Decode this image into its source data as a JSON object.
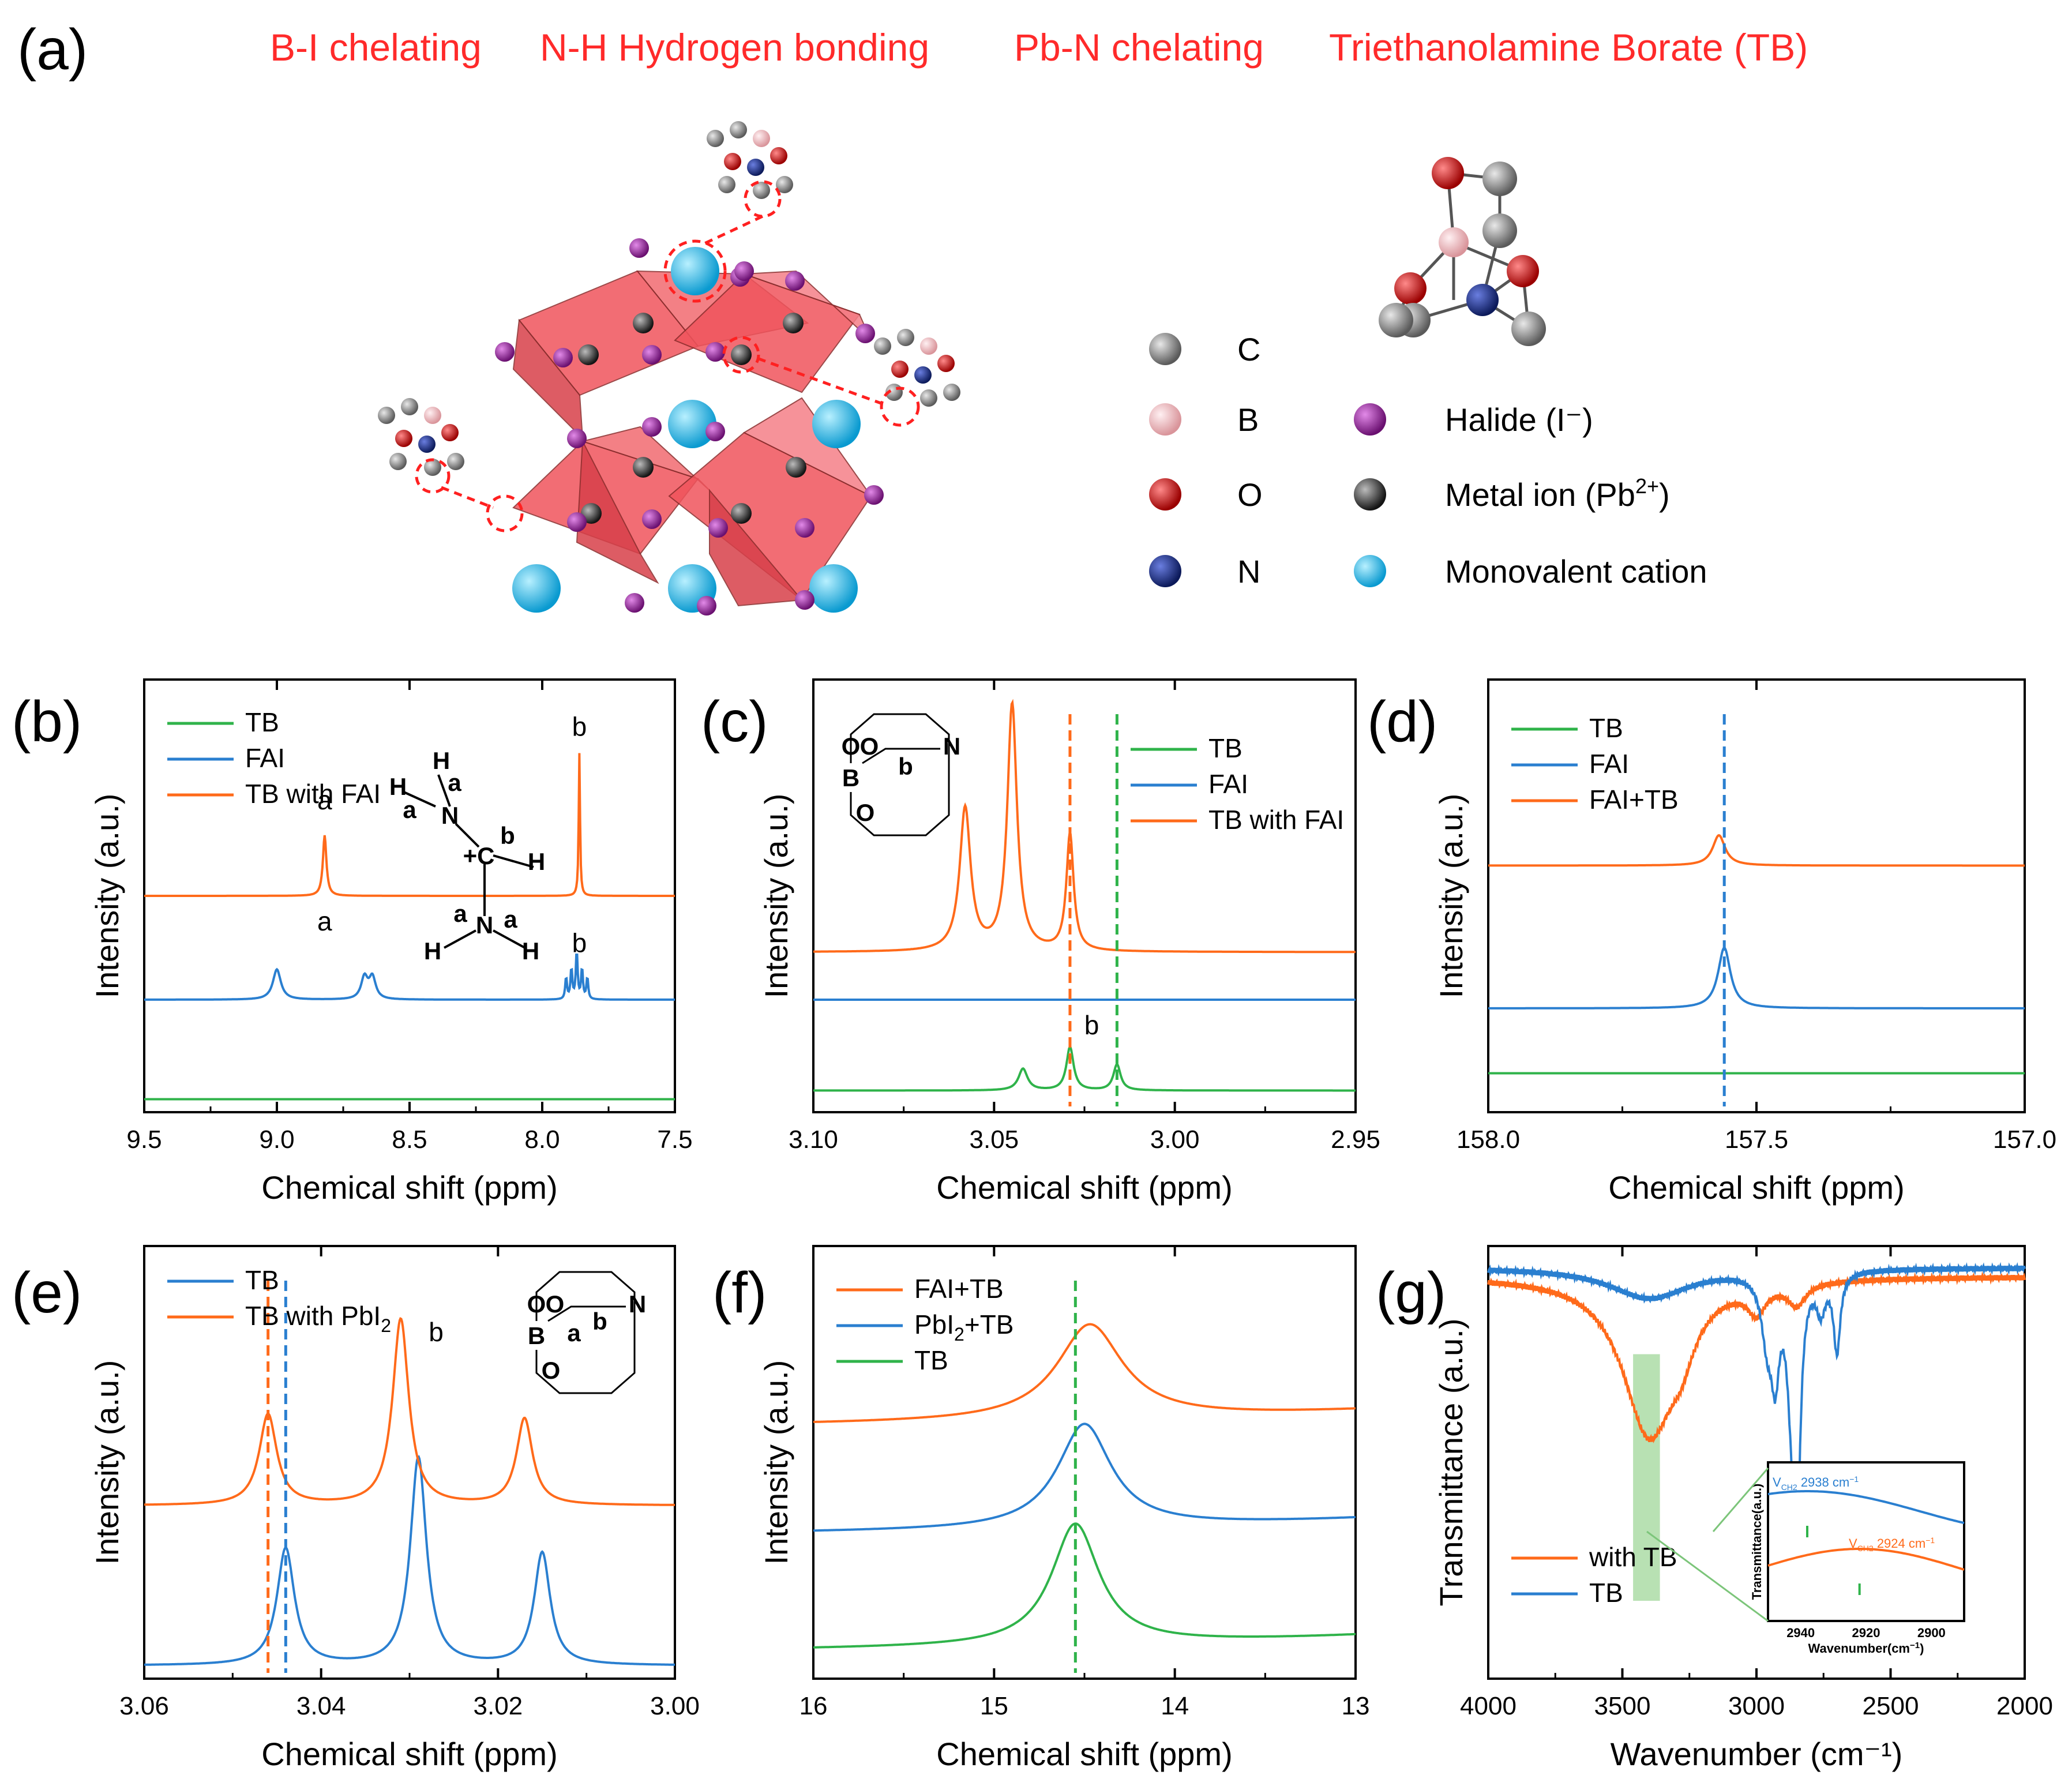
{
  "panel_a": {
    "label": "(a)",
    "headings": [
      "B-I chelating",
      "N-H Hydrogen bonding",
      "Pb-N chelating",
      "Triethanolamine Borate (TB)"
    ],
    "legend": [
      {
        "label": "C",
        "color": "#8c8c8c"
      },
      {
        "label": "B",
        "color": "#f4b8bc"
      },
      {
        "label": "O",
        "color": "#e01010"
      },
      {
        "label": "N",
        "color": "#1c2f8c"
      },
      {
        "label": "Halide (I⁻)",
        "color": "#9a2aa0"
      },
      {
        "label": "Metal ion (Pb",
        "sup": "2+",
        "tail": ")",
        "color": "#3a3a3a"
      },
      {
        "label": "Monovalent cation",
        "color": "#1ab8e8"
      }
    ],
    "colors": {
      "octahedron": "#f0545c",
      "halide": "#9a2aa0",
      "metal": "#3a3a3a",
      "cation": "#1ab8e8",
      "arrow": "#ff2020"
    }
  },
  "chart_data": [
    {
      "id": "b",
      "label": "(b)",
      "type": "line",
      "xlabel": "Chemical shift (ppm)",
      "ylabel": "Intensity (a.u.)",
      "xlim": [
        9.5,
        7.5
      ],
      "xticks": [
        "9.5",
        "9.0",
        "8.5",
        "8.0",
        "7.5"
      ],
      "series": [
        {
          "name": "TB",
          "color": "#2fb34a",
          "offset": 0.03,
          "peaks": []
        },
        {
          "name": "FAI",
          "color": "#2a7fd0",
          "offset": 0.26,
          "peaks": [
            [
              9.0,
              0.07,
              0.018
            ],
            [
              8.67,
              0.05,
              0.015
            ],
            [
              8.64,
              0.05,
              0.015
            ],
            [
              7.87,
              0.11,
              0.004
            ],
            [
              7.89,
              0.07,
              0.004
            ],
            [
              7.85,
              0.07,
              0.004
            ],
            [
              7.83,
              0.05,
              0.004
            ],
            [
              7.91,
              0.05,
              0.004
            ]
          ]
        },
        {
          "name": "TB with FAI",
          "color": "#ff6a1a",
          "offset": 0.5,
          "peaks": [
            [
              8.82,
              0.14,
              0.008
            ],
            [
              7.86,
              0.33,
              0.003
            ]
          ]
        }
      ],
      "annotations": [
        {
          "text": "a",
          "x": 8.82,
          "y": 0.7
        },
        {
          "text": "b",
          "x": 7.86,
          "y": 0.87
        },
        {
          "text": "a",
          "x": 8.82,
          "y": 0.42
        },
        {
          "text": "b",
          "x": 7.86,
          "y": 0.37
        }
      ]
    },
    {
      "id": "c",
      "label": "(c)",
      "type": "line",
      "xlabel": "Chemical shift (ppm)",
      "ylabel": "Intensity (a.u.)",
      "xlim": [
        3.1,
        2.95
      ],
      "xticks": [
        "3.10",
        "3.05",
        "3.00",
        "2.95"
      ],
      "series": [
        {
          "name": "TB",
          "color": "#2fb34a",
          "offset": 0.05,
          "peaks": [
            [
              3.042,
              0.05,
              0.0015
            ],
            [
              3.029,
              0.1,
              0.0012
            ],
            [
              3.016,
              0.06,
              0.0012
            ]
          ]
        },
        {
          "name": "FAI",
          "color": "#2a7fd0",
          "offset": 0.26,
          "peaks": []
        },
        {
          "name": "TB with FAI",
          "color": "#ff6a1a",
          "offset": 0.37,
          "peaks": [
            [
              3.058,
              0.33,
              0.0018
            ],
            [
              3.045,
              0.57,
              0.0016
            ],
            [
              3.029,
              0.27,
              0.0012
            ]
          ]
        }
      ],
      "vlines": [
        {
          "x": 3.029,
          "color": "#ff6a1a"
        },
        {
          "x": 3.016,
          "color": "#2fb34a"
        }
      ],
      "annotations": [
        {
          "text": "b",
          "x": 3.023,
          "y": 0.18
        }
      ]
    },
    {
      "id": "d",
      "label": "(d)",
      "type": "line",
      "xlabel": "Chemical shift (ppm)",
      "ylabel": "Intensity (a.u.)",
      "xlim": [
        158.0,
        157.0
      ],
      "xticks": [
        "158.0",
        "157.5",
        "157.0"
      ],
      "series": [
        {
          "name": "TB",
          "color": "#2fb34a",
          "offset": 0.09,
          "peaks": []
        },
        {
          "name": "FAI",
          "color": "#2a7fd0",
          "offset": 0.24,
          "peaks": [
            [
              157.56,
              0.14,
              0.014
            ]
          ]
        },
        {
          "name": "FAI+TB",
          "color": "#ff6a1a",
          "offset": 0.57,
          "peaks": [
            [
              157.57,
              0.07,
              0.014
            ]
          ]
        }
      ],
      "vlines": [
        {
          "x": 157.56,
          "color": "#2a7fd0"
        }
      ]
    },
    {
      "id": "e",
      "label": "(e)",
      "type": "line",
      "xlabel": "Chemical shift (ppm)",
      "ylabel": "Intensity (a.u.)",
      "xlim": [
        3.06,
        3.0
      ],
      "xticks": [
        "3.06",
        "3.04",
        "3.02",
        "3.00"
      ],
      "series": [
        {
          "name": "TB",
          "color": "#2a7fd0",
          "offset": 0.03,
          "peaks": [
            [
              3.044,
              0.27,
              0.0012
            ],
            [
              3.029,
              0.48,
              0.0011
            ],
            [
              3.015,
              0.26,
              0.0011
            ]
          ]
        },
        {
          "name": "TB with PbI",
          "sub": "2",
          "color": "#ff6a1a",
          "offset": 0.4,
          "peaks": [
            [
              3.046,
              0.21,
              0.0012
            ],
            [
              3.031,
              0.43,
              0.0011
            ],
            [
              3.017,
              0.2,
              0.0011
            ]
          ]
        }
      ],
      "vlines": [
        {
          "x": 3.046,
          "color": "#ff6a1a"
        },
        {
          "x": 3.044,
          "color": "#2a7fd0"
        }
      ],
      "annotations": [
        {
          "text": "b",
          "x": 3.027,
          "y": 0.78
        }
      ]
    },
    {
      "id": "f",
      "label": "(f)",
      "type": "line",
      "xlabel": "Chemical shift (ppm)",
      "ylabel": "Intensity (a.u.)",
      "xlim": [
        16,
        13
      ],
      "xticks": [
        "16",
        "15",
        "14",
        "13"
      ],
      "series": [
        {
          "name": "FAI+TB",
          "color": "#ff6a1a",
          "offset": 0.58,
          "peaks": [
            [
              14.47,
              0.22,
              0.22
            ]
          ]
        },
        {
          "name": "PbI",
          "sub": "2",
          "tail": "+TB",
          "color": "#2a7fd0",
          "offset": 0.33,
          "peaks": [
            [
              14.5,
              0.24,
              0.18
            ]
          ]
        },
        {
          "name": "TB",
          "color": "#2fb34a",
          "offset": 0.06,
          "peaks": [
            [
              14.55,
              0.28,
              0.16
            ]
          ]
        }
      ],
      "vlines": [
        {
          "x": 14.55,
          "color": "#2fb34a"
        }
      ]
    },
    {
      "id": "g",
      "label": "(g)",
      "type": "line",
      "xlabel": "Wavenumber (cm⁻¹)",
      "ylabel": "Transmittance (a.u.)",
      "xlim": [
        4000,
        2000
      ],
      "xticks": [
        "4000",
        "3500",
        "3000",
        "2500",
        "2000"
      ],
      "series": [
        {
          "name": "with TB",
          "color": "#ff6a1a",
          "baseline": 0.93,
          "peaks": [
            [
              3400,
              0.36,
              120
            ],
            [
              3280,
              0.08,
              60
            ],
            [
              3000,
              0.06,
              40
            ],
            [
              2850,
              0.05,
              40
            ]
          ]
        },
        {
          "name": "TB",
          "color": "#2a7fd0",
          "baseline": 0.95,
          "peaks": [
            [
              3400,
              0.07,
              180
            ],
            [
              2960,
              0.14,
              25
            ],
            [
              2930,
              0.2,
              18
            ],
            [
              2870,
              0.2,
              20
            ],
            [
              2850,
              0.58,
              15
            ],
            [
              2700,
              0.18,
              15
            ],
            [
              2760,
              0.08,
              20
            ]
          ]
        }
      ],
      "highlight": {
        "from": 3460,
        "to": 3360,
        "color": "#a6d9a0"
      },
      "inset": {
        "xlabel": "Wavenumber(cm",
        "xlabel_sup": "−1",
        "xlabel_tail": ")",
        "ylabel": "Transmittance(a.u.)",
        "xlim": [
          2950,
          2890
        ],
        "xticks": [
          "2940",
          "2920",
          "2900"
        ],
        "note1": "V",
        "note1_sub": "CH2",
        "note1_text": "2938 cm",
        "note1_sup": "−1",
        "note2": "V",
        "note2_sub": "CH2",
        "note2_text": "2924 cm",
        "note2_sup": "−1"
      }
    }
  ],
  "molecule": {
    "b_atoms": [
      "H",
      "N",
      "a",
      "H",
      "a",
      "+C",
      "b",
      "H",
      "N",
      "a",
      "a",
      "H",
      "H",
      "H"
    ],
    "ring_atoms": [
      "O",
      "O",
      "B",
      "O",
      "N",
      "b"
    ],
    "ring_atoms_e": [
      "O",
      "O",
      "B",
      "O",
      "N",
      "a",
      "b"
    ]
  }
}
